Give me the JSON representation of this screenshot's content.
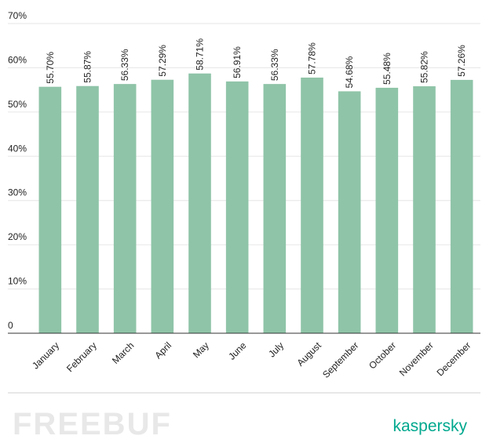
{
  "chart_data": {
    "type": "bar",
    "categories": [
      "January",
      "February",
      "March",
      "April",
      "May",
      "June",
      "July",
      "August",
      "September",
      "October",
      "November",
      "December"
    ],
    "values": [
      55.7,
      55.87,
      56.33,
      57.29,
      58.71,
      56.91,
      56.33,
      57.78,
      54.68,
      55.48,
      55.82,
      57.26
    ],
    "value_labels": [
      "55.70%",
      "55.87%",
      "56.33%",
      "57.29%",
      "58.71%",
      "56.91%",
      "56.33%",
      "57.78%",
      "54.68%",
      "55.48%",
      "55.82%",
      "57.26%"
    ],
    "color": "#8fc4a8",
    "ylim": [
      0,
      70
    ],
    "yticks": [
      0,
      {
        "value": 10,
        "label": "10%"
      },
      {
        "value": 20,
        "label": "20%"
      },
      {
        "value": 30,
        "label": "30%"
      },
      {
        "value": 40,
        "label": "40%"
      },
      {
        "value": 50,
        "label": "50%"
      },
      {
        "value": 60,
        "label": "60%"
      },
      {
        "value": 70,
        "label": "70%"
      }
    ],
    "grid": true
  },
  "footer": {
    "watermark": "FREEBUF",
    "brand": "kaspersky"
  }
}
